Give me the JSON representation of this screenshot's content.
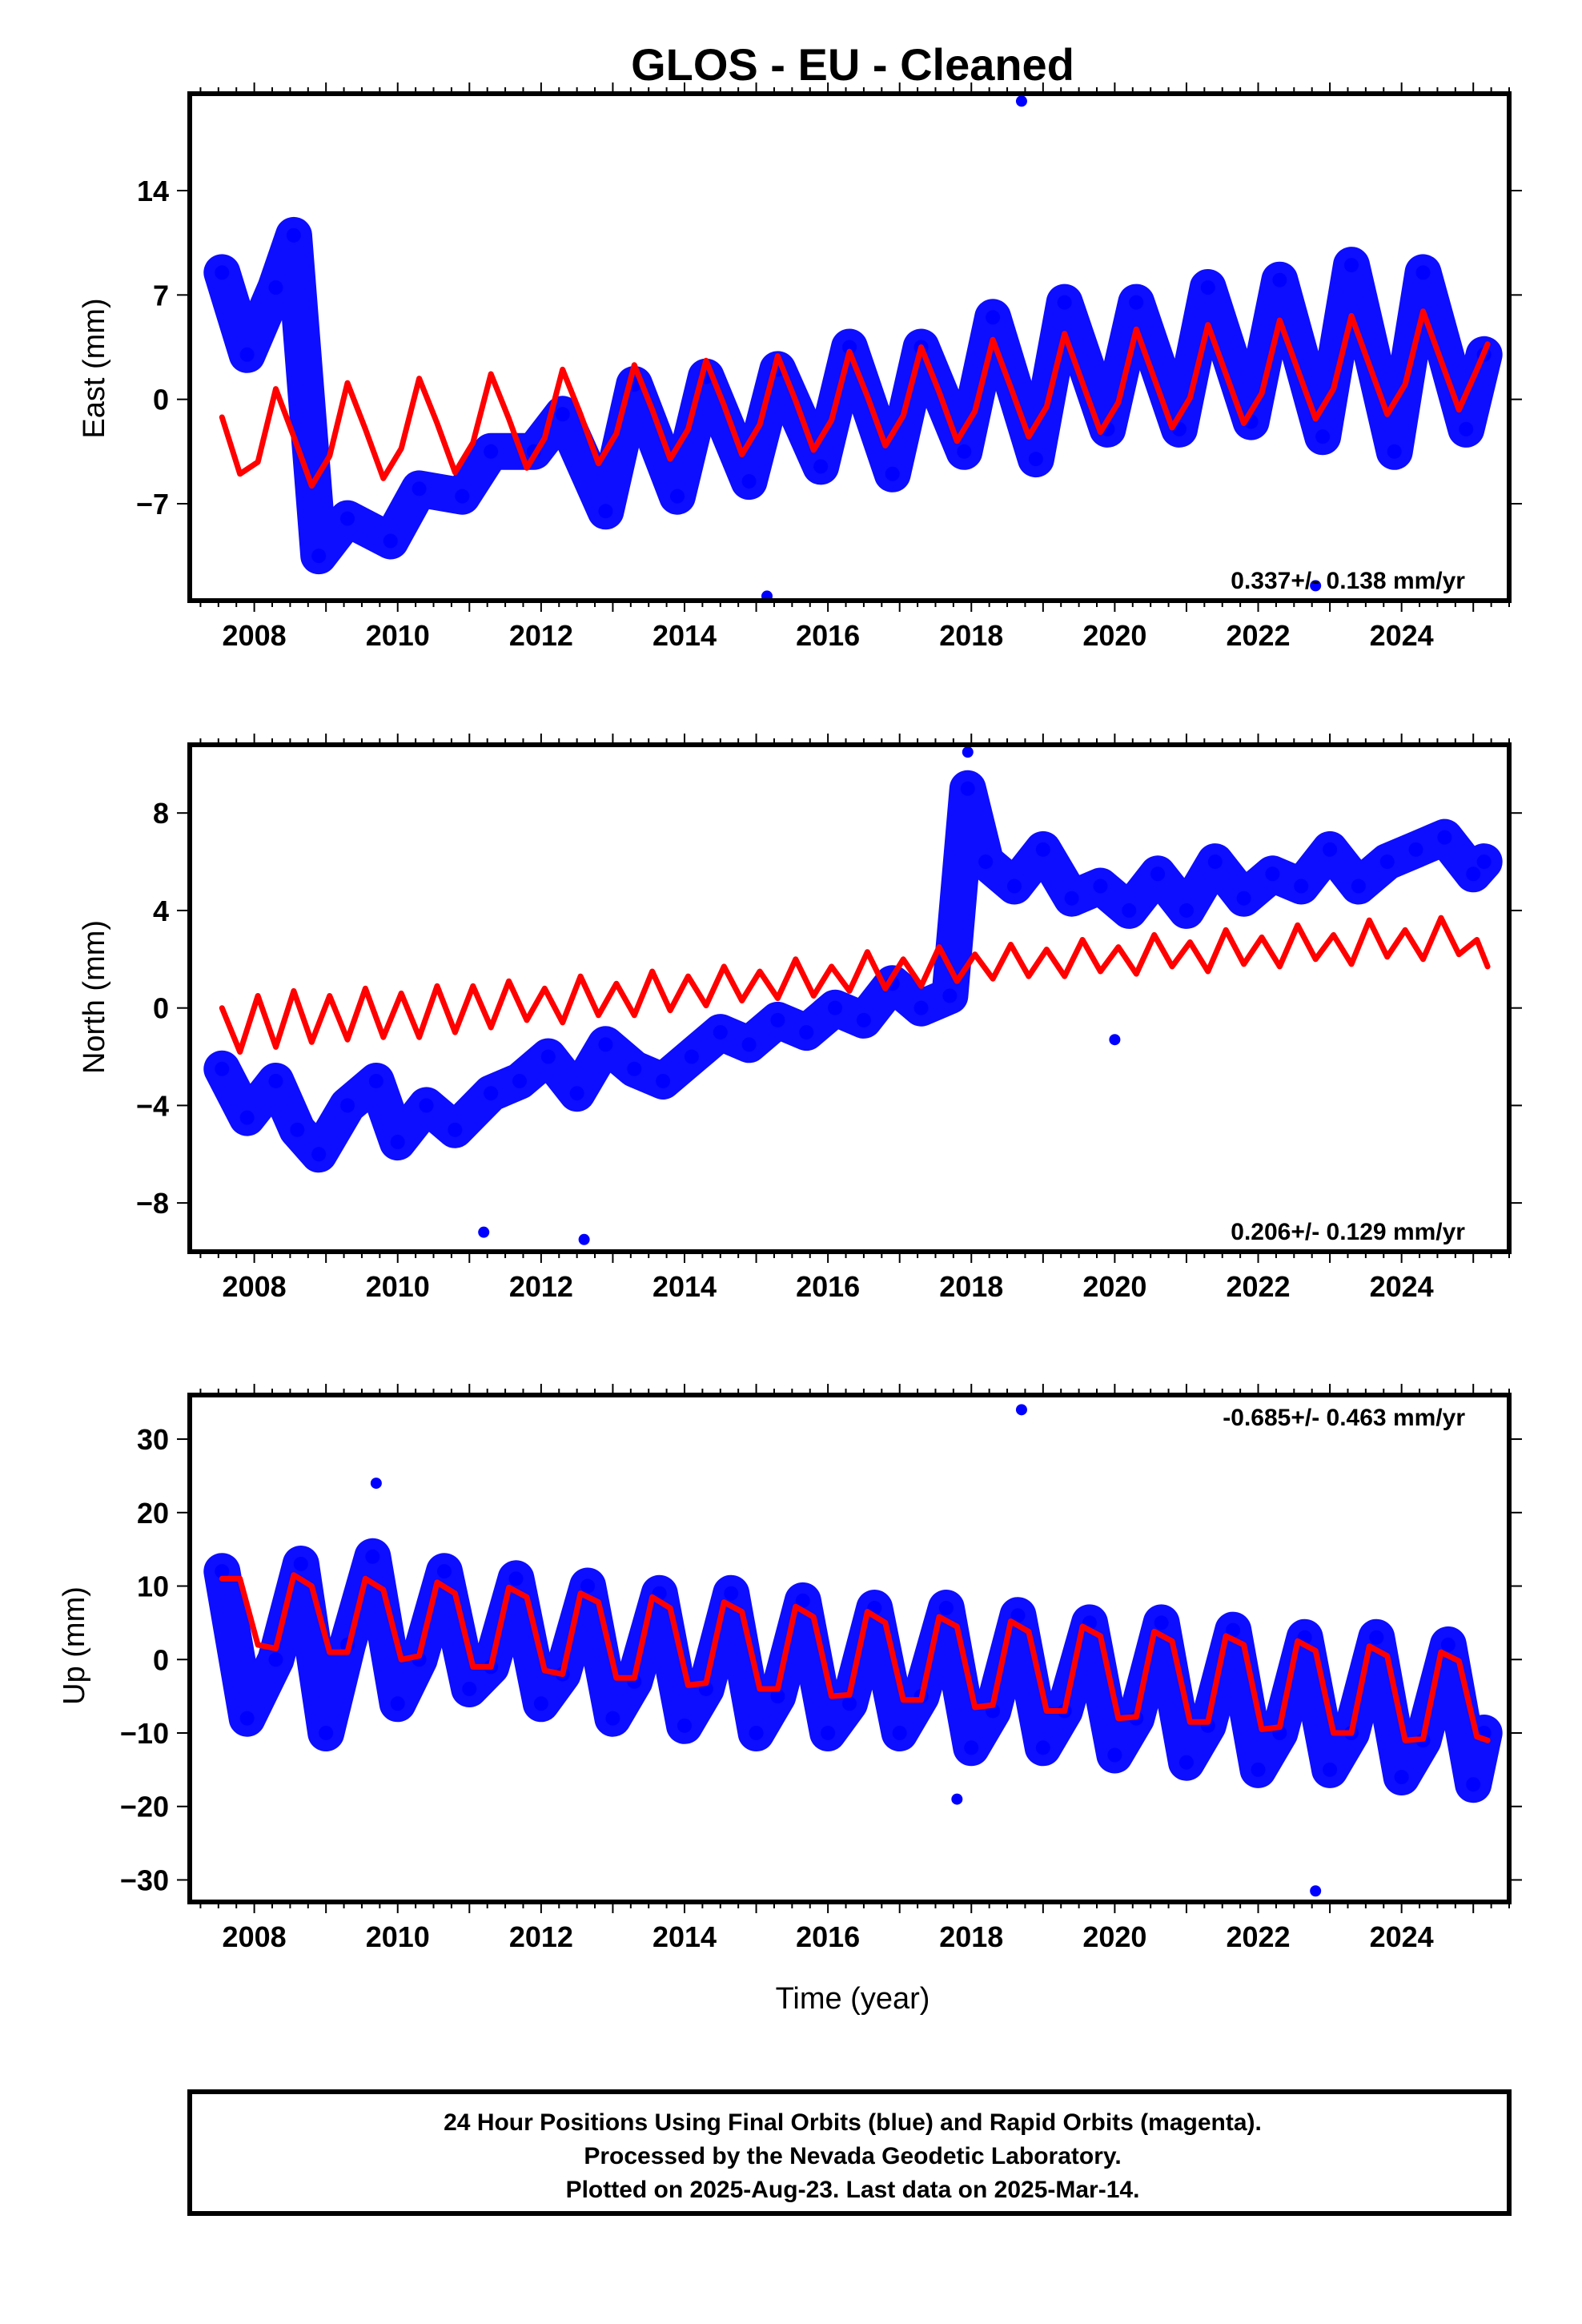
{
  "title": "GLOS  - EU - Cleaned",
  "xlabel": "Time (year)",
  "x_ticks": [
    "2008",
    "2010",
    "2012",
    "2014",
    "2016",
    "2018",
    "2020",
    "2022",
    "2024"
  ],
  "footer": [
    "24 Hour Positions Using Final Orbits (blue) and Rapid Orbits (magenta).",
    "Processed by the Nevada Geodetic Laboratory.",
    "Plotted on 2025-Aug-23. Last data on 2025-Mar-14."
  ],
  "colors": {
    "data": "#0000ff",
    "model": "#ff0000",
    "frame": "#000000"
  },
  "chart_data": [
    {
      "type": "scatter",
      "ylabel": "East (mm)",
      "rate_label": "0.337+/- 0.138 mm/yr",
      "xlim": [
        2007.1,
        2025.5
      ],
      "ylim": [
        -13.5,
        20.5
      ],
      "y_ticks": [
        -7,
        0,
        7,
        14
      ],
      "x": [
        2007.55,
        2007.9,
        2008.3,
        2008.55,
        2008.9,
        2009.3,
        2009.9,
        2010.3,
        2010.9,
        2011.3,
        2011.9,
        2012.3,
        2012.9,
        2013.3,
        2013.9,
        2014.3,
        2014.9,
        2015.3,
        2015.9,
        2016.3,
        2016.9,
        2017.3,
        2017.9,
        2018.3,
        2018.9,
        2019.3,
        2019.9,
        2020.3,
        2020.9,
        2021.3,
        2021.9,
        2022.3,
        2022.9,
        2023.3,
        2023.9,
        2024.3,
        2024.9,
        2025.15
      ],
      "y": [
        8.5,
        3.0,
        7.5,
        11.0,
        -10.5,
        -8.0,
        -9.5,
        -6.0,
        -6.5,
        -3.5,
        -3.5,
        -1.0,
        -7.5,
        1.0,
        -6.5,
        1.5,
        -5.5,
        2.0,
        -4.5,
        3.5,
        -5.0,
        3.5,
        -3.5,
        5.5,
        -4.0,
        6.5,
        -2.0,
        6.5,
        -2.0,
        7.5,
        -1.5,
        8.0,
        -2.5,
        9.0,
        -3.5,
        8.5,
        -2.0,
        3.0
      ],
      "outliers": [
        [
          2018.7,
          20.0
        ],
        [
          2015.15,
          -13.2
        ],
        [
          2022.8,
          -12.5
        ]
      ],
      "model": {
        "name": "model",
        "x": [
          2007.55,
          2007.8,
          2008.05,
          2008.3,
          2008.55,
          2008.8,
          2009.05,
          2009.3,
          2009.55,
          2009.8,
          2010.05,
          2010.3,
          2010.55,
          2010.8,
          2011.05,
          2011.3,
          2011.55,
          2011.8,
          2012.05,
          2012.3,
          2012.55,
          2012.8,
          2013.05,
          2013.3,
          2013.55,
          2013.8,
          2014.05,
          2014.3,
          2014.55,
          2014.8,
          2015.05,
          2015.3,
          2015.55,
          2015.8,
          2016.05,
          2016.3,
          2016.55,
          2016.8,
          2017.05,
          2017.3,
          2017.55,
          2017.8,
          2018.05,
          2018.3,
          2018.55,
          2018.8,
          2019.05,
          2019.3,
          2019.55,
          2019.8,
          2020.05,
          2020.3,
          2020.55,
          2020.8,
          2021.05,
          2021.3,
          2021.55,
          2021.8,
          2022.05,
          2022.3,
          2022.55,
          2022.8,
          2023.05,
          2023.3,
          2023.55,
          2023.8,
          2024.05,
          2024.3,
          2024.55,
          2024.8,
          2025.05,
          2025.2
        ],
        "y": [
          -1.2,
          -5.0,
          -4.2,
          0.7,
          -2.5,
          -5.8,
          -3.8,
          1.1,
          -2.0,
          -5.3,
          -3.3,
          1.4,
          -1.6,
          -4.9,
          -2.9,
          1.7,
          -1.3,
          -4.6,
          -2.6,
          2.0,
          -1.0,
          -4.3,
          -2.3,
          2.3,
          -0.7,
          -4.0,
          -2.0,
          2.6,
          -0.4,
          -3.7,
          -1.7,
          2.9,
          -0.1,
          -3.4,
          -1.4,
          3.2,
          0.2,
          -3.1,
          -1.1,
          3.5,
          0.5,
          -2.8,
          -0.8,
          4.0,
          0.8,
          -2.5,
          -0.5,
          4.4,
          1.1,
          -2.2,
          -0.2,
          4.7,
          1.4,
          -1.9,
          0.1,
          5.0,
          1.7,
          -1.6,
          0.4,
          5.3,
          2.0,
          -1.3,
          0.7,
          5.6,
          2.3,
          -1.0,
          1.0,
          5.9,
          2.6,
          -0.7,
          2.0,
          3.7
        ]
      }
    },
    {
      "type": "scatter",
      "ylabel": "North (mm)",
      "rate_label": "0.206+/- 0.129 mm/yr",
      "xlim": [
        2007.1,
        2025.5
      ],
      "ylim": [
        -10.0,
        10.8
      ],
      "y_ticks": [
        -8,
        -4,
        0,
        4,
        8
      ],
      "x": [
        2007.55,
        2007.9,
        2008.3,
        2008.6,
        2008.9,
        2009.3,
        2009.7,
        2010.0,
        2010.4,
        2010.8,
        2011.3,
        2011.7,
        2012.1,
        2012.5,
        2012.9,
        2013.3,
        2013.7,
        2014.1,
        2014.5,
        2014.9,
        2015.3,
        2015.7,
        2016.1,
        2016.5,
        2016.9,
        2017.3,
        2017.7,
        2017.95,
        2018.2,
        2018.6,
        2019.0,
        2019.4,
        2019.8,
        2020.2,
        2020.6,
        2021.0,
        2021.4,
        2021.8,
        2022.2,
        2022.6,
        2023.0,
        2023.4,
        2023.8,
        2024.2,
        2024.6,
        2025.0,
        2025.15
      ],
      "y": [
        -2.5,
        -4.5,
        -3.0,
        -5.0,
        -6.0,
        -4.0,
        -3.0,
        -5.5,
        -4.0,
        -5.0,
        -3.5,
        -3.0,
        -2.0,
        -3.5,
        -1.5,
        -2.5,
        -3.0,
        -2.0,
        -1.0,
        -1.5,
        -0.5,
        -1.0,
        0.0,
        -0.5,
        1.0,
        0.0,
        0.5,
        9.0,
        6.0,
        5.0,
        6.5,
        4.5,
        5.0,
        4.0,
        5.5,
        4.0,
        6.0,
        4.5,
        5.5,
        5.0,
        6.5,
        5.0,
        6.0,
        6.5,
        7.0,
        5.5,
        6.0
      ],
      "outliers": [
        [
          2011.2,
          -9.2
        ],
        [
          2012.6,
          -9.5
        ],
        [
          2017.95,
          10.5
        ],
        [
          2020.0,
          -1.3
        ]
      ],
      "model": {
        "name": "model",
        "x": [
          2007.55,
          2007.8,
          2008.05,
          2008.3,
          2008.55,
          2008.8,
          2009.05,
          2009.3,
          2009.55,
          2009.8,
          2010.05,
          2010.3,
          2010.55,
          2010.8,
          2011.05,
          2011.3,
          2011.55,
          2011.8,
          2012.05,
          2012.3,
          2012.55,
          2012.8,
          2013.05,
          2013.3,
          2013.55,
          2013.8,
          2014.05,
          2014.3,
          2014.55,
          2014.8,
          2015.05,
          2015.3,
          2015.55,
          2015.8,
          2016.05,
          2016.3,
          2016.55,
          2016.8,
          2017.05,
          2017.3,
          2017.55,
          2017.8,
          2018.05,
          2018.3,
          2018.55,
          2018.8,
          2019.05,
          2019.3,
          2019.55,
          2019.8,
          2020.05,
          2020.3,
          2020.55,
          2020.8,
          2021.05,
          2021.3,
          2021.55,
          2021.8,
          2022.05,
          2022.3,
          2022.55,
          2022.8,
          2023.05,
          2023.3,
          2023.55,
          2023.8,
          2024.05,
          2024.3,
          2024.55,
          2024.8,
          2025.05,
          2025.2
        ],
        "y": [
          0.0,
          -1.8,
          0.5,
          -1.6,
          0.7,
          -1.4,
          0.5,
          -1.3,
          0.8,
          -1.2,
          0.6,
          -1.2,
          0.9,
          -1.0,
          0.9,
          -0.8,
          1.1,
          -0.5,
          0.8,
          -0.6,
          1.3,
          -0.3,
          1.0,
          -0.3,
          1.5,
          -0.1,
          1.3,
          0.1,
          1.7,
          0.3,
          1.5,
          0.4,
          2.0,
          0.5,
          1.7,
          0.7,
          2.3,
          0.8,
          2.0,
          0.9,
          2.5,
          1.1,
          2.2,
          1.2,
          2.6,
          1.3,
          2.4,
          1.3,
          2.8,
          1.5,
          2.5,
          1.4,
          3.0,
          1.7,
          2.7,
          1.5,
          3.2,
          1.8,
          2.9,
          1.7,
          3.4,
          2.0,
          3.0,
          1.8,
          3.6,
          2.1,
          3.2,
          2.0,
          3.7,
          2.2,
          2.8,
          1.7
        ]
      }
    },
    {
      "type": "scatter",
      "ylabel": "Up (mm)",
      "rate_label": "-0.685+/- 0.463 mm/yr",
      "xlim": [
        2007.1,
        2025.5
      ],
      "ylim": [
        -33,
        36
      ],
      "y_ticks": [
        -30,
        -20,
        -10,
        0,
        10,
        20,
        30
      ],
      "x": [
        2007.55,
        2007.9,
        2008.3,
        2008.65,
        2009.0,
        2009.3,
        2009.65,
        2010.0,
        2010.3,
        2010.65,
        2011.0,
        2011.3,
        2011.65,
        2012.0,
        2012.3,
        2012.65,
        2013.0,
        2013.3,
        2013.65,
        2014.0,
        2014.3,
        2014.65,
        2015.0,
        2015.3,
        2015.65,
        2016.0,
        2016.3,
        2016.65,
        2017.0,
        2017.3,
        2017.65,
        2018.0,
        2018.3,
        2018.65,
        2019.0,
        2019.3,
        2019.65,
        2020.0,
        2020.3,
        2020.65,
        2021.0,
        2021.3,
        2021.65,
        2022.0,
        2022.3,
        2022.65,
        2023.0,
        2023.3,
        2023.65,
        2024.0,
        2024.3,
        2024.65,
        2025.0,
        2025.15
      ],
      "y": [
        12.0,
        -8.0,
        0.0,
        13.0,
        -10.0,
        2.0,
        14.0,
        -6.0,
        0.0,
        12.0,
        -4.0,
        -1.0,
        11.0,
        -6.0,
        -2.0,
        10.0,
        -8.0,
        -3.0,
        9.0,
        -9.0,
        -4.0,
        9.0,
        -10.0,
        -5.0,
        8.0,
        -10.0,
        -6.0,
        7.0,
        -10.0,
        -5.0,
        7.0,
        -12.0,
        -7.0,
        6.0,
        -12.0,
        -7.0,
        5.0,
        -13.0,
        -8.0,
        5.0,
        -14.0,
        -9.0,
        4.0,
        -15.0,
        -10.0,
        3.0,
        -15.0,
        -10.0,
        3.0,
        -16.0,
        -11.0,
        2.0,
        -17.0,
        -10.0
      ],
      "outliers": [
        [
          2018.7,
          34.0
        ],
        [
          2009.7,
          24.0
        ],
        [
          2017.8,
          -19.0
        ],
        [
          2022.8,
          -31.5
        ]
      ],
      "model": {
        "name": "model",
        "x": [
          2007.55,
          2007.8,
          2008.05,
          2008.3,
          2008.55,
          2008.8,
          2009.05,
          2009.3,
          2009.55,
          2009.8,
          2010.05,
          2010.3,
          2010.55,
          2010.8,
          2011.05,
          2011.3,
          2011.55,
          2011.8,
          2012.05,
          2012.3,
          2012.55,
          2012.8,
          2013.05,
          2013.3,
          2013.55,
          2013.8,
          2014.05,
          2014.3,
          2014.55,
          2014.8,
          2015.05,
          2015.3,
          2015.55,
          2015.8,
          2016.05,
          2016.3,
          2016.55,
          2016.8,
          2017.05,
          2017.3,
          2017.55,
          2017.8,
          2018.05,
          2018.3,
          2018.55,
          2018.8,
          2019.05,
          2019.3,
          2019.55,
          2019.8,
          2020.05,
          2020.3,
          2020.55,
          2020.8,
          2021.05,
          2021.3,
          2021.55,
          2021.8,
          2022.05,
          2022.3,
          2022.55,
          2022.8,
          2023.05,
          2023.3,
          2023.55,
          2023.8,
          2024.05,
          2024.3,
          2024.55,
          2024.8,
          2025.05,
          2025.2
        ],
        "y": [
          11.0,
          11.0,
          2.0,
          1.5,
          11.5,
          10.0,
          1.0,
          1.0,
          11.0,
          9.5,
          0.0,
          0.5,
          10.5,
          9.0,
          -1.0,
          -1.0,
          9.8,
          8.5,
          -1.5,
          -2.0,
          9.0,
          7.8,
          -2.5,
          -2.5,
          8.5,
          7.0,
          -3.5,
          -3.2,
          7.8,
          6.5,
          -4.0,
          -4.0,
          7.2,
          5.8,
          -5.0,
          -4.8,
          6.5,
          5.0,
          -5.5,
          -5.5,
          5.8,
          4.5,
          -6.5,
          -6.2,
          5.2,
          3.8,
          -7.0,
          -7.0,
          4.5,
          3.2,
          -8.0,
          -7.8,
          3.8,
          2.5,
          -8.5,
          -8.5,
          3.2,
          2.0,
          -9.5,
          -9.2,
          2.5,
          1.2,
          -10.0,
          -10.0,
          1.8,
          0.5,
          -11.0,
          -10.8,
          1.0,
          -0.2,
          -10.5,
          -11.0
        ]
      }
    }
  ]
}
